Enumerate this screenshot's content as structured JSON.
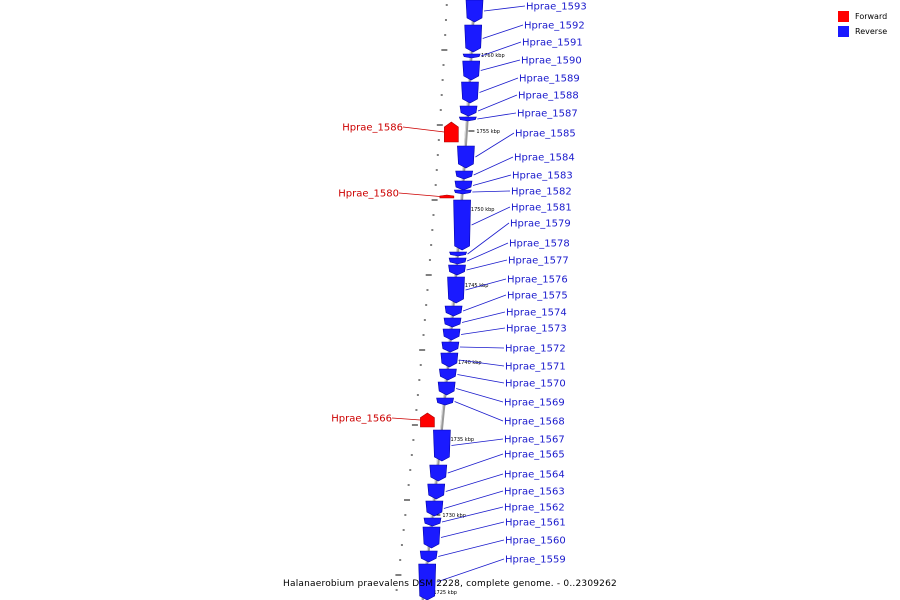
{
  "colors": {
    "forward": "#ff0000",
    "reverse": "#1a1aff",
    "label_forward": "#cc0000",
    "label_reverse": "#1a1acc",
    "backbone": "#999999"
  },
  "legend": [
    {
      "label": "Forward",
      "strand": "forward"
    },
    {
      "label": "Reverse",
      "strand": "reverse"
    }
  ],
  "caption": "Halanaerobium praevalens DSM 2228, complete genome. - 0..2309262",
  "coordinate_labels": [
    "1760 kbp",
    "1755 kbp",
    "1750 kbp",
    "1745 kbp",
    "1740 kbp",
    "1735 kbp",
    "1730 kbp",
    "1725 kbp"
  ],
  "genes": [
    {
      "name": "Hprae_1593",
      "strand": "reverse"
    },
    {
      "name": "Hprae_1592",
      "strand": "reverse"
    },
    {
      "name": "Hprae_1591",
      "strand": "reverse"
    },
    {
      "name": "Hprae_1590",
      "strand": "reverse"
    },
    {
      "name": "Hprae_1589",
      "strand": "reverse"
    },
    {
      "name": "Hprae_1588",
      "strand": "reverse"
    },
    {
      "name": "Hprae_1587",
      "strand": "reverse"
    },
    {
      "name": "Hprae_1586",
      "strand": "forward"
    },
    {
      "name": "Hprae_1585",
      "strand": "reverse"
    },
    {
      "name": "Hprae_1584",
      "strand": "reverse"
    },
    {
      "name": "Hprae_1583",
      "strand": "reverse"
    },
    {
      "name": "Hprae_1582",
      "strand": "reverse"
    },
    {
      "name": "Hprae_1580",
      "strand": "forward"
    },
    {
      "name": "Hprae_1581",
      "strand": "reverse"
    },
    {
      "name": "Hprae_1579",
      "strand": "reverse"
    },
    {
      "name": "Hprae_1578",
      "strand": "reverse"
    },
    {
      "name": "Hprae_1577",
      "strand": "reverse"
    },
    {
      "name": "Hprae_1576",
      "strand": "reverse"
    },
    {
      "name": "Hprae_1575",
      "strand": "reverse"
    },
    {
      "name": "Hprae_1574",
      "strand": "reverse"
    },
    {
      "name": "Hprae_1573",
      "strand": "reverse"
    },
    {
      "name": "Hprae_1572",
      "strand": "reverse"
    },
    {
      "name": "Hprae_1571",
      "strand": "reverse"
    },
    {
      "name": "Hprae_1570",
      "strand": "reverse"
    },
    {
      "name": "Hprae_1569",
      "strand": "reverse"
    },
    {
      "name": "Hprae_1568",
      "strand": "reverse"
    },
    {
      "name": "Hprae_1566",
      "strand": "forward"
    },
    {
      "name": "Hprae_1567",
      "strand": "reverse"
    },
    {
      "name": "Hprae_1565",
      "strand": "reverse"
    },
    {
      "name": "Hprae_1564",
      "strand": "reverse"
    },
    {
      "name": "Hprae_1563",
      "strand": "reverse"
    },
    {
      "name": "Hprae_1562",
      "strand": "reverse"
    },
    {
      "name": "Hprae_1561",
      "strand": "reverse"
    },
    {
      "name": "Hprae_1560",
      "strand": "reverse"
    },
    {
      "name": "Hprae_1559",
      "strand": "reverse"
    }
  ]
}
